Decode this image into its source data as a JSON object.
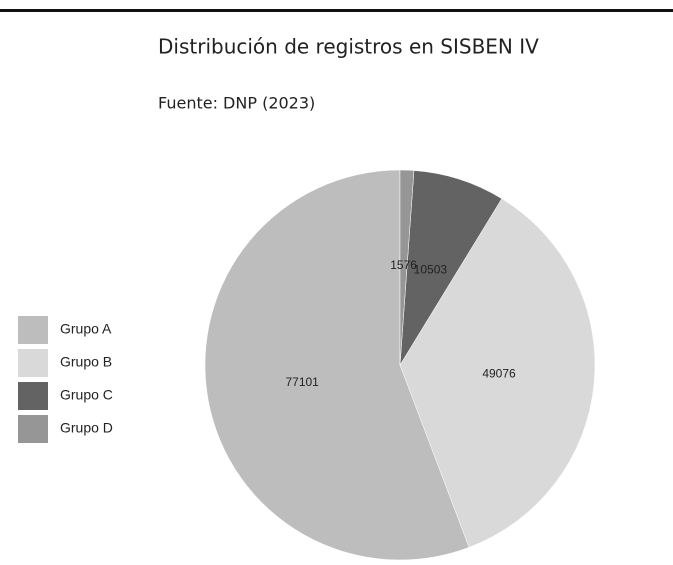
{
  "chart_data": {
    "type": "pie",
    "title": "Distribución de registros en SISBEN IV",
    "subtitle": "Fuente: DNP (2023)",
    "categories": [
      "Grupo A",
      "Grupo B",
      "Grupo C",
      "Grupo D"
    ],
    "values": [
      77101,
      49076,
      10503,
      1576
    ],
    "colors": [
      "#bdbdbd",
      "#d9d9d9",
      "#636363",
      "#969696"
    ],
    "direction": "counterclockwise"
  }
}
